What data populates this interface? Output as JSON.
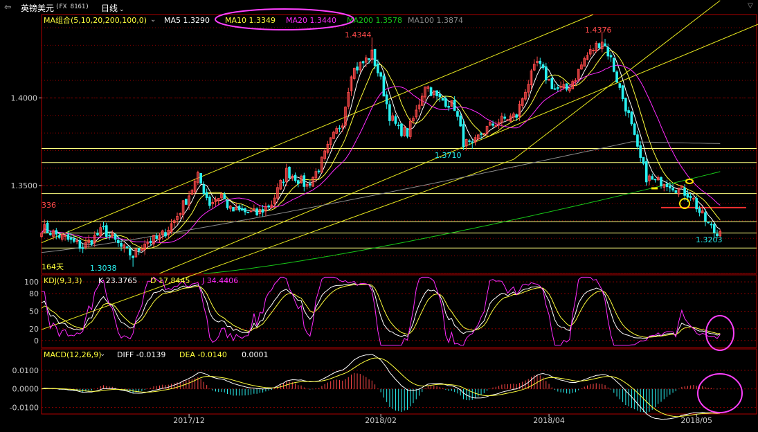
{
  "toolbar": {
    "back_label": "⇦",
    "instrument": "英镑美元",
    "instrument_code": "(FX 8161)",
    "period": "日线"
  },
  "colors": {
    "bull": "#ff4a4a",
    "bear": "#29f0f0",
    "ma5": "#ffffff",
    "ma10": "#ffff3c",
    "ma20": "#ff2bff",
    "ma200": "#18c818",
    "ma100": "#8a8a8a",
    "channel": "#e6e61e",
    "grid": "#8c0000",
    "level": "#ffff80",
    "annot": "#ff40ff",
    "marker": "#ffe600"
  },
  "chart_data": [
    {
      "type": "candlestick",
      "title": "MA组合(5,10,20,200,100,0)",
      "legend": [
        {
          "name": "MA5",
          "value": "1.3290"
        },
        {
          "name": "MA10",
          "value": "1.3349"
        },
        {
          "name": "MA20",
          "value": "1.3440"
        },
        {
          "name": "MA200",
          "value": "1.3578"
        },
        {
          "name": "MA100",
          "value": "1.3874"
        }
      ],
      "ylim": [
        1.3,
        1.4475
      ],
      "yticks": [
        "1.4000",
        "1.3500"
      ],
      "x_labels": [
        "2017/12",
        "2018/02",
        "2018/04",
        "2018/05"
      ],
      "annotations": {
        "high_1": "1.4344",
        "high_2": "1.4376",
        "low_mid": "1.3710",
        "low_start": "1.3038",
        "low_end": "1.3203",
        "left_value": "336",
        "span_label": "164天"
      },
      "horizontal_levels": [
        1.3712,
        1.3632,
        1.3455,
        1.3295,
        1.323,
        1.3145
      ],
      "current_price_line": 1.3375,
      "anchors": [
        [
          0,
          1.326
        ],
        [
          8,
          1.32
        ],
        [
          14,
          1.315
        ],
        [
          21,
          1.325
        ],
        [
          27,
          1.315
        ],
        [
          31,
          1.31
        ],
        [
          35,
          1.318
        ],
        [
          40,
          1.32
        ],
        [
          45,
          1.33
        ],
        [
          50,
          1.345
        ],
        [
          53,
          1.355
        ],
        [
          57,
          1.34
        ],
        [
          61,
          1.345
        ],
        [
          64,
          1.336
        ],
        [
          69,
          1.335
        ],
        [
          73,
          1.334
        ],
        [
          78,
          1.34
        ],
        [
          83,
          1.358
        ],
        [
          86,
          1.355
        ],
        [
          90,
          1.35
        ],
        [
          94,
          1.36
        ],
        [
          98,
          1.375
        ],
        [
          102,
          1.387
        ],
        [
          105,
          1.415
        ],
        [
          109,
          1.42
        ],
        [
          112,
          1.425
        ],
        [
          115,
          1.41
        ],
        [
          118,
          1.39
        ],
        [
          121,
          1.382
        ],
        [
          124,
          1.38
        ],
        [
          127,
          1.392
        ],
        [
          130,
          1.408
        ],
        [
          134,
          1.4
        ],
        [
          137,
          1.398
        ],
        [
          140,
          1.395
        ],
        [
          143,
          1.375
        ],
        [
          146,
          1.372
        ],
        [
          149,
          1.38
        ],
        [
          153,
          1.385
        ],
        [
          157,
          1.388
        ],
        [
          161,
          1.39
        ],
        [
          164,
          1.405
        ],
        [
          168,
          1.42
        ],
        [
          171,
          1.412
        ],
        [
          174,
          1.405
        ],
        [
          178,
          1.405
        ],
        [
          181,
          1.412
        ],
        [
          184,
          1.422
        ],
        [
          187,
          1.428
        ],
        [
          190,
          1.433
        ],
        [
          193,
          1.422
        ],
        [
          196,
          1.405
        ],
        [
          199,
          1.39
        ],
        [
          202,
          1.37
        ],
        [
          205,
          1.355
        ],
        [
          208,
          1.352
        ],
        [
          211,
          1.353
        ],
        [
          214,
          1.35
        ],
        [
          217,
          1.347
        ],
        [
          220,
          1.345
        ],
        [
          223,
          1.335
        ],
        [
          226,
          1.328
        ],
        [
          229,
          1.322
        ],
        [
          230,
          1.324
        ]
      ]
    },
    {
      "type": "line",
      "title": "KDJ(9,3,3)",
      "series": [
        {
          "name": "K",
          "value": "23.3765"
        },
        {
          "name": "D",
          "value": "17.8445"
        },
        {
          "name": "J",
          "value": "34.4406"
        }
      ],
      "yticks": [
        "100",
        "80",
        "50",
        "20",
        "0"
      ],
      "ylim": [
        -12,
        112
      ]
    },
    {
      "type": "line",
      "title": "MACD(12,26,9)",
      "series": [
        {
          "name": "DIFF",
          "value": "-0.0139"
        },
        {
          "name": "DEA",
          "value": "-0.0140"
        },
        {
          "name": "MACD",
          "value": "0.0001"
        }
      ],
      "yticks": [
        "0.0100",
        "0.0000",
        "-0.0100"
      ],
      "ylim": [
        -0.0135,
        0.0215
      ]
    }
  ]
}
